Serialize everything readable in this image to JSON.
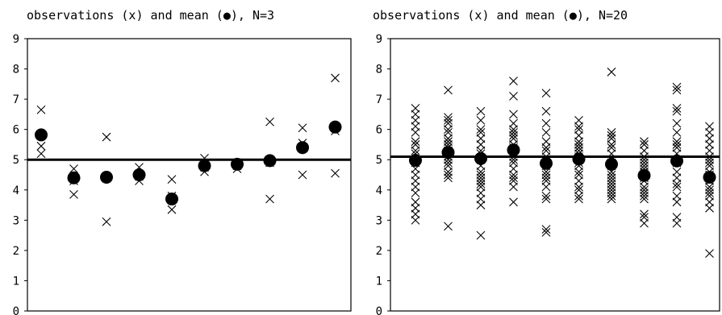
{
  "chart_data": [
    {
      "type": "scatter",
      "title": "observations (x) and mean (●), N=3",
      "ylim": [
        0,
        9
      ],
      "yticks": [
        0,
        1,
        2,
        3,
        4,
        5,
        6,
        7,
        8,
        9
      ],
      "reference_line": 5,
      "groups": [
        {
          "observations": [
            6.65,
            5.45,
            5.2
          ],
          "mean": 5.82
        },
        {
          "observations": [
            4.7,
            4.3,
            3.85
          ],
          "mean": 4.4
        },
        {
          "observations": [
            5.75,
            4.45,
            2.95
          ],
          "mean": 4.42
        },
        {
          "observations": [
            4.75,
            4.45,
            4.3
          ],
          "mean": 4.5
        },
        {
          "observations": [
            4.35,
            3.35,
            3.8
          ],
          "mean": 3.7
        },
        {
          "observations": [
            5.05,
            4.6,
            4.75
          ],
          "mean": 4.8
        },
        {
          "observations": [
            4.9,
            4.7,
            4.8
          ],
          "mean": 4.85
        },
        {
          "observations": [
            6.25,
            4.9,
            3.7
          ],
          "mean": 4.97
        },
        {
          "observations": [
            6.05,
            5.55,
            4.5
          ],
          "mean": 5.4
        },
        {
          "observations": [
            7.7,
            5.95,
            4.55
          ],
          "mean": 6.08
        }
      ]
    },
    {
      "type": "scatter",
      "title": "observations (x) and mean (●), N=20",
      "ylim": [
        0,
        9
      ],
      "yticks": [
        0,
        1,
        2,
        3,
        4,
        5,
        6,
        7,
        8,
        9
      ],
      "reference_line": 5.1,
      "groups": [
        {
          "observations": [
            6.7,
            6.5,
            6.3,
            6.1,
            5.9,
            5.6,
            5.5,
            5.3,
            5.2,
            5.0,
            4.9,
            4.7,
            4.5,
            4.3,
            4.1,
            3.9,
            3.6,
            3.4,
            3.2,
            3.0
          ],
          "mean": 4.98
        },
        {
          "observations": [
            7.3,
            6.4,
            6.3,
            6.2,
            6.0,
            5.9,
            5.7,
            5.6,
            5.5,
            5.3,
            5.2,
            5.1,
            5.0,
            4.9,
            4.8,
            4.6,
            4.5,
            4.4,
            2.8,
            5.4
          ],
          "mean": 5.24
        },
        {
          "observations": [
            6.6,
            6.3,
            6.0,
            5.9,
            5.7,
            5.5,
            5.3,
            5.2,
            5.0,
            4.8,
            4.6,
            4.5,
            4.3,
            4.2,
            4.1,
            3.9,
            3.7,
            3.5,
            2.5,
            4.4
          ],
          "mean": 5.04
        },
        {
          "observations": [
            7.6,
            7.1,
            6.5,
            6.2,
            6.0,
            5.9,
            5.7,
            5.5,
            5.4,
            5.2,
            5.1,
            5.0,
            4.9,
            4.7,
            4.5,
            4.4,
            4.3,
            4.1,
            3.6,
            5.8
          ],
          "mean": 5.32
        },
        {
          "observations": [
            7.2,
            6.6,
            6.2,
            5.9,
            5.6,
            5.3,
            5.1,
            5.0,
            4.9,
            4.8,
            4.6,
            4.5,
            4.3,
            4.1,
            3.8,
            3.7,
            2.7,
            2.6,
            5.4,
            4.4
          ],
          "mean": 4.88
        },
        {
          "observations": [
            6.3,
            6.1,
            6.0,
            5.8,
            5.6,
            5.4,
            5.3,
            5.2,
            5.1,
            5.0,
            4.9,
            4.8,
            4.6,
            4.5,
            4.3,
            4.1,
            4.0,
            3.8,
            3.7,
            5.5
          ],
          "mean": 5.02
        },
        {
          "observations": [
            7.9,
            5.8,
            5.7,
            5.5,
            5.4,
            5.2,
            5.0,
            4.9,
            4.8,
            4.6,
            4.5,
            4.4,
            4.3,
            4.2,
            4.1,
            4.0,
            3.9,
            3.8,
            3.7,
            5.9
          ],
          "mean": 4.85
        },
        {
          "observations": [
            5.6,
            5.5,
            5.3,
            5.1,
            5.0,
            4.9,
            4.8,
            4.6,
            4.5,
            4.4,
            4.3,
            4.1,
            4.0,
            3.9,
            3.8,
            3.7,
            3.2,
            3.1,
            2.9,
            4.7
          ],
          "mean": 4.48
        },
        {
          "observations": [
            7.4,
            7.3,
            6.7,
            6.6,
            6.2,
            5.9,
            5.6,
            5.4,
            5.2,
            5.0,
            4.9,
            4.6,
            4.4,
            4.2,
            4.1,
            3.8,
            3.6,
            3.1,
            2.9,
            5.5
          ],
          "mean": 4.96
        },
        {
          "observations": [
            6.1,
            5.9,
            5.7,
            5.5,
            5.3,
            5.1,
            5.0,
            4.9,
            4.8,
            4.6,
            4.5,
            4.3,
            4.1,
            4.0,
            3.9,
            3.8,
            3.6,
            3.4,
            1.9,
            4.4
          ],
          "mean": 4.42
        }
      ]
    }
  ]
}
